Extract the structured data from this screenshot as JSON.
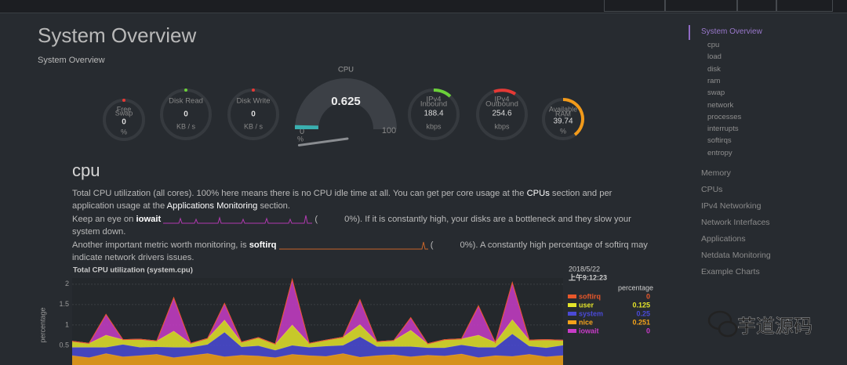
{
  "header": {
    "title": "System Overview",
    "subtitle": "System Overview"
  },
  "gauges": {
    "swap": {
      "label": "Free",
      "title": "Swap",
      "value": 0,
      "unit": "%"
    },
    "disk_read": {
      "title": "Disk Read",
      "value": 0,
      "unit": "KB / s"
    },
    "disk_write": {
      "title": "Disk Write",
      "value": 0,
      "unit": "KB / s"
    },
    "cpu": {
      "title": "CPU",
      "value": 0.625,
      "min": 0,
      "max": 100,
      "unit": "%"
    },
    "inbound": {
      "label": "IPv4",
      "title": "Inbound",
      "value": 188.4,
      "unit": "kbps"
    },
    "outbound": {
      "label": "IPv4",
      "title": "Outbound",
      "value": 254.6,
      "unit": "kbps"
    },
    "ram": {
      "label": "Available",
      "title": "RAM",
      "value": 39.74,
      "unit": "%"
    }
  },
  "section": {
    "title": "cpu",
    "paragraphs": [
      [
        "Total CPU utilization (all cores). 100% here means there is no CPU idle time at all. You can get per core usage at the ",
        "CPUs",
        " section and per application usage at the ",
        "Applications Monitoring",
        " section."
      ],
      [
        "Keep an eye on ",
        "iowait",
        "(",
        "0%). If it is constantly high, your disks are a bottleneck and they slow your system down."
      ],
      [
        "Another important metric worth monitoring, is ",
        "softirq",
        "(",
        "0%). A constantly high percentage of softirq may indicate network drivers issues."
      ]
    ]
  },
  "chart_data": {
    "type": "area",
    "title": "Total CPU utilization (system.cpu)",
    "y_label": "percentage",
    "legend_title": "percentage",
    "date": "2018/5/22",
    "time": "上午9:12:23",
    "ylim": [
      0,
      2.15
    ],
    "yticks": [
      0.5,
      1,
      1.5,
      2
    ],
    "grid": true,
    "series": [
      {
        "name": "softirq",
        "color": "#e8572a",
        "values": [
          0,
          0,
          0.01,
          0,
          0,
          0,
          0.02,
          0,
          0,
          0.01,
          0,
          0,
          0,
          0.02,
          0,
          0,
          0,
          0.01,
          0,
          0,
          0.01,
          0,
          0,
          0,
          0.02,
          0,
          0.01,
          0,
          0,
          0
        ]
      },
      {
        "name": "user",
        "color": "#e4e42a",
        "values": [
          0.15,
          0.1,
          0.3,
          0.12,
          0.2,
          0.15,
          0.4,
          0.1,
          0.15,
          0.3,
          0.12,
          0.2,
          0.15,
          0.5,
          0.1,
          0.15,
          0.2,
          0.3,
          0.12,
          0.15,
          0.4,
          0.1,
          0.2,
          0.15,
          0.3,
          0.12,
          0.35,
          0.15,
          0.2,
          0.125
        ]
      },
      {
        "name": "system",
        "color": "#4a4ad6",
        "values": [
          0.2,
          0.25,
          0.15,
          0.3,
          0.2,
          0.18,
          0.25,
          0.2,
          0.22,
          0.6,
          0.2,
          0.25,
          0.18,
          0.22,
          0.2,
          0.25,
          0.2,
          0.5,
          0.22,
          0.2,
          0.25,
          0.18,
          0.2,
          0.22,
          0.25,
          0.2,
          0.55,
          0.2,
          0.22,
          0.25
        ]
      },
      {
        "name": "nice",
        "color": "#f5a31a",
        "values": [
          0.25,
          0.2,
          0.3,
          0.22,
          0.25,
          0.28,
          0.2,
          0.25,
          0.3,
          0.22,
          0.26,
          0.24,
          0.2,
          0.28,
          0.25,
          0.23,
          0.3,
          0.21,
          0.25,
          0.27,
          0.22,
          0.26,
          0.24,
          0.29,
          0.2,
          0.25,
          0.23,
          0.28,
          0.22,
          0.251
        ]
      },
      {
        "name": "iowait",
        "color": "#c83cc8",
        "values": [
          0,
          0,
          0.5,
          0,
          0,
          0,
          0.8,
          0,
          0,
          0.4,
          0,
          0,
          0,
          1.1,
          0,
          0,
          0,
          0.6,
          0,
          0,
          0.3,
          0,
          0,
          0,
          0.7,
          0,
          0.9,
          0,
          0,
          0
        ]
      }
    ]
  },
  "sidebar": {
    "active": "System Overview",
    "subitems": [
      "cpu",
      "load",
      "disk",
      "ram",
      "swap",
      "network",
      "processes",
      "interrupts",
      "softirqs",
      "entropy"
    ],
    "items": [
      "Memory",
      "CPUs",
      "IPv4 Networking",
      "Network Interfaces",
      "Applications",
      "Netdata Monitoring",
      "Example Charts"
    ]
  },
  "watermark": "芋道源码"
}
